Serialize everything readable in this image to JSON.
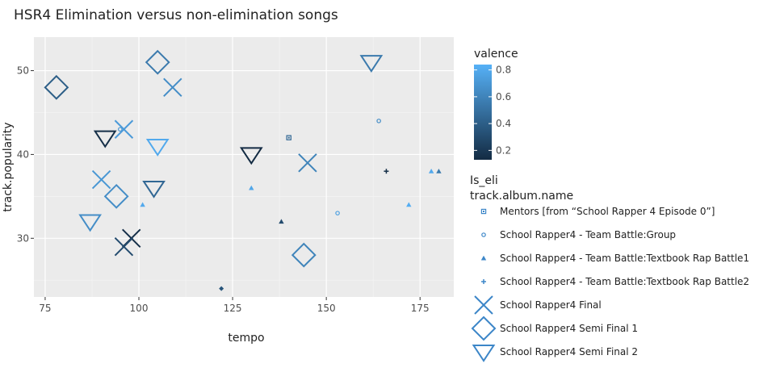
{
  "chart_data": {
    "type": "scatter",
    "title": "HSR4 Elimination versus non-elimination songs",
    "xlabel": "tempo",
    "ylabel": "track.popularity",
    "xlim": [
      72,
      184
    ],
    "ylim": [
      23,
      54
    ],
    "xticks": [
      75,
      100,
      125,
      150,
      175
    ],
    "yticks": [
      30,
      40,
      50
    ],
    "grid": true,
    "legend_position": "right",
    "color_legend": {
      "title": "valence",
      "min": 0.13,
      "max": 0.84,
      "ticks": [
        0.2,
        0.4,
        0.6,
        0.8
      ],
      "tick_labels": [
        "0.2",
        "0.4",
        "0.6",
        "0.8"
      ],
      "color_low": "#132B43",
      "color_high": "#56B1F7"
    },
    "shape_legend": {
      "title_line1": "Is_eli",
      "title_line2": "track.album.name",
      "entries": [
        {
          "label": "Mentors [from “School Rapper 4 Episode 0”]",
          "shape": "square",
          "size": "small"
        },
        {
          "label": "School Rapper4 - Team Battle:Group",
          "shape": "circle",
          "size": "small"
        },
        {
          "label": "School Rapper4 - Team Battle:Textbook Rap Battle1",
          "shape": "triangle-up",
          "size": "small"
        },
        {
          "label": "School Rapper4 - Team Battle:Textbook Rap Battle2",
          "shape": "plus",
          "size": "small"
        },
        {
          "label": "School Rapper4 Final",
          "shape": "x",
          "size": "large"
        },
        {
          "label": "School Rapper4 Semi Final 1",
          "shape": "diamond",
          "size": "large"
        },
        {
          "label": "School Rapper4 Semi Final 2",
          "shape": "triangle-down",
          "size": "large"
        }
      ]
    },
    "points": [
      {
        "x": 140,
        "y": 42,
        "shape": "square",
        "size": "small",
        "valence": 0.45
      },
      {
        "x": 95,
        "y": 43,
        "shape": "circle",
        "size": "small",
        "valence": 0.7
      },
      {
        "x": 164,
        "y": 44,
        "shape": "circle",
        "size": "small",
        "valence": 0.65
      },
      {
        "x": 153,
        "y": 33,
        "shape": "circle",
        "size": "small",
        "valence": 0.75
      },
      {
        "x": 101,
        "y": 34,
        "shape": "triangle-up",
        "size": "small",
        "valence": 0.8
      },
      {
        "x": 130,
        "y": 36,
        "shape": "triangle-up",
        "size": "small",
        "valence": 0.78
      },
      {
        "x": 138,
        "y": 32,
        "shape": "triangle-up",
        "size": "small",
        "valence": 0.3
      },
      {
        "x": 172,
        "y": 34,
        "shape": "triangle-up",
        "size": "small",
        "valence": 0.82
      },
      {
        "x": 178,
        "y": 38,
        "shape": "triangle-up",
        "size": "small",
        "valence": 0.8
      },
      {
        "x": 180,
        "y": 38,
        "shape": "triangle-up",
        "size": "small",
        "valence": 0.55
      },
      {
        "x": 122,
        "y": 24,
        "shape": "diamond-small",
        "size": "small",
        "valence": 0.35
      },
      {
        "x": 166,
        "y": 38,
        "shape": "plus",
        "size": "small",
        "valence": 0.15
      },
      {
        "x": 109,
        "y": 48,
        "shape": "x",
        "size": "large",
        "valence": 0.65
      },
      {
        "x": 96,
        "y": 43,
        "shape": "x",
        "size": "large",
        "valence": 0.72
      },
      {
        "x": 145,
        "y": 39,
        "shape": "x",
        "size": "large",
        "valence": 0.6
      },
      {
        "x": 90,
        "y": 37,
        "shape": "x",
        "size": "large",
        "valence": 0.7
      },
      {
        "x": 98,
        "y": 30,
        "shape": "x",
        "size": "large",
        "valence": 0.15
      },
      {
        "x": 96,
        "y": 29,
        "shape": "x",
        "size": "large",
        "valence": 0.3
      },
      {
        "x": 78,
        "y": 48,
        "shape": "diamond",
        "size": "large",
        "valence": 0.4
      },
      {
        "x": 105,
        "y": 51,
        "shape": "diamond",
        "size": "large",
        "valence": 0.55
      },
      {
        "x": 94,
        "y": 35,
        "shape": "diamond",
        "size": "large",
        "valence": 0.65
      },
      {
        "x": 144,
        "y": 28,
        "shape": "diamond",
        "size": "large",
        "valence": 0.6
      },
      {
        "x": 162,
        "y": 51,
        "shape": "triangle-down",
        "size": "large",
        "valence": 0.55
      },
      {
        "x": 105,
        "y": 41,
        "shape": "triangle-down",
        "size": "large",
        "valence": 0.8
      },
      {
        "x": 91,
        "y": 42,
        "shape": "triangle-down",
        "size": "large",
        "valence": 0.15
      },
      {
        "x": 130,
        "y": 40,
        "shape": "triangle-down",
        "size": "large",
        "valence": 0.13
      },
      {
        "x": 104,
        "y": 36,
        "shape": "triangle-down",
        "size": "large",
        "valence": 0.45
      },
      {
        "x": 87,
        "y": 32,
        "shape": "triangle-down",
        "size": "large",
        "valence": 0.65
      }
    ]
  }
}
